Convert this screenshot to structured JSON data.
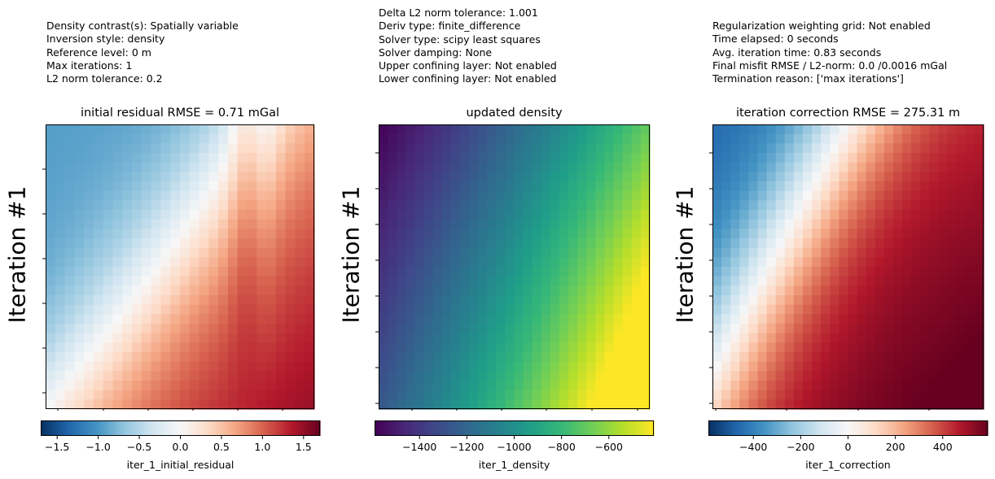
{
  "info_blocks": [
    [
      "Density contrast(s): Spatially variable",
      "Inversion style: density",
      "Reference level: 0 m",
      "Max iterations: 1",
      "L2 norm tolerance: 0.2"
    ],
    [
      "Delta L2 norm tolerance: 1.001",
      "Deriv type: finite_difference",
      "Solver type: scipy least squares",
      "Solver damping: None",
      "Upper confining layer: Not enabled",
      "Lower confining layer: Not enabled"
    ],
    [
      "Regularization weighting grid: Not enabled",
      "Time elapsed: 0 seconds",
      "Avg. iteration time: 0.83 seconds",
      "Final misfit RMSE / L2-norm: 0.0 /0.0016 mGal",
      "Termination reason: ['max iterations']"
    ]
  ],
  "chart_data": [
    {
      "type": "heatmap",
      "title": "initial residual RMSE = 0.71 mGal",
      "ylabel": "Iteration #1",
      "colorbar_label": "iter_1_initial_residual",
      "colormap": "RdBu_r",
      "vmin": -1.7,
      "vmax": 1.7,
      "colorbar_ticks": [
        -1.5,
        -1.0,
        -0.5,
        0.0,
        0.5,
        1.0,
        1.5
      ],
      "colorbar_tick_labels": [
        "−1.5",
        "−1.0",
        "−0.5",
        "0.0",
        "0.5",
        "1.0",
        "1.5"
      ],
      "grid_size": [
        28,
        30
      ],
      "field": "residual"
    },
    {
      "type": "heatmap",
      "title": "updated density",
      "ylabel": "Iteration #1",
      "colorbar_label": "iter_1_density",
      "colormap": "viridis",
      "vmin": -1590,
      "vmax": -410,
      "colorbar_ticks": [
        -1400,
        -1200,
        -1000,
        -800,
        -600
      ],
      "colorbar_tick_labels": [
        "−1400",
        "−1200",
        "−1000",
        "−800",
        "−600"
      ],
      "grid_size": [
        30,
        30
      ],
      "field": "density"
    },
    {
      "type": "heatmap",
      "title": "iteration correction RMSE = 275.31 m",
      "ylabel": "Iteration #1",
      "colorbar_label": "iter_1_correction",
      "colormap": "RdBu_r",
      "vmin": -590,
      "vmax": 590,
      "colorbar_ticks": [
        -400,
        -200,
        0,
        200,
        400
      ],
      "colorbar_tick_labels": [
        "−400",
        "−200",
        "0",
        "200",
        "400"
      ],
      "grid_size": [
        30,
        30
      ],
      "field": "correction"
    }
  ]
}
